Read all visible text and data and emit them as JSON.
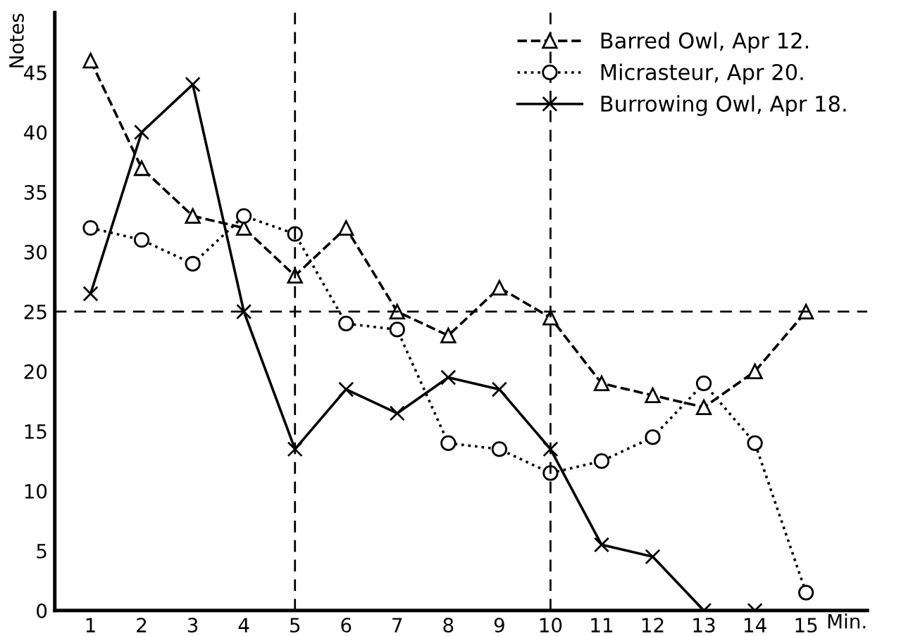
{
  "chart_data": {
    "type": "line",
    "ylabel": "Notes",
    "xlabel": "Min.",
    "x": [
      1,
      2,
      3,
      4,
      5,
      6,
      7,
      8,
      9,
      10,
      11,
      12,
      13,
      14,
      15
    ],
    "series": [
      {
        "name": "Barred Owl, Apr 12.",
        "color": "#000000",
        "marker": "triangle",
        "line_style": "dashed",
        "values": [
          46,
          37,
          33,
          32,
          28,
          32,
          25,
          23,
          27,
          24.5,
          19,
          18,
          17,
          20,
          25
        ]
      },
      {
        "name": "Micrasteur, Apr 20.",
        "color": "#000000",
        "marker": "circle",
        "line_style": "dotted",
        "values": [
          32,
          31,
          29,
          33,
          31.5,
          24,
          23.5,
          14,
          13.5,
          11.5,
          12.5,
          14.5,
          19,
          14,
          1.5
        ]
      },
      {
        "name": "Burrowing Owl, Apr 18.",
        "color": "#000000",
        "marker": "cross",
        "line_style": "solid",
        "values": [
          26.5,
          40,
          44,
          25,
          13.5,
          18.5,
          16.5,
          19.5,
          18.5,
          13.5,
          5.5,
          4.5,
          0,
          0,
          null
        ]
      }
    ],
    "xlim": [
      0.3,
      16.2
    ],
    "ylim": [
      0,
      50
    ],
    "xticks": [
      1,
      2,
      3,
      4,
      5,
      6,
      7,
      8,
      9,
      10,
      11,
      12,
      13,
      14,
      15
    ],
    "yticks": [
      0,
      5,
      10,
      15,
      20,
      25,
      30,
      35,
      40,
      45
    ],
    "ref_lines": [
      {
        "axis": "y",
        "value": 25,
        "line_style": "dashed"
      },
      {
        "axis": "x",
        "value": 5,
        "line_style": "dashed"
      },
      {
        "axis": "x",
        "value": 10,
        "line_style": "dashed"
      }
    ],
    "grid": false,
    "legend": "top right"
  }
}
